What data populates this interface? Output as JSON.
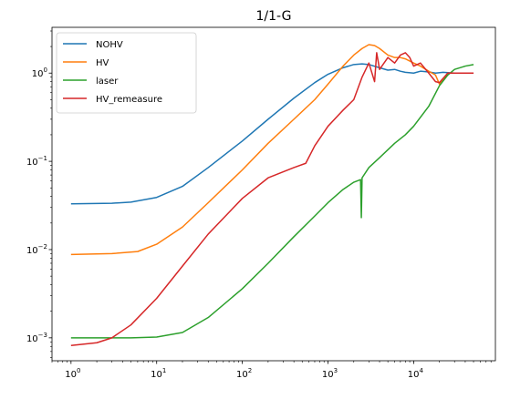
{
  "chart_data": {
    "type": "line",
    "title": "1/1-G",
    "xlabel": "",
    "ylabel": "",
    "xscale": "log",
    "yscale": "log",
    "xlim": [
      0.6,
      90000
    ],
    "ylim": [
      0.00055,
      3.3
    ],
    "x_ticks": [
      {
        "value": 1,
        "base": "10",
        "exp": "0"
      },
      {
        "value": 10,
        "base": "10",
        "exp": "1"
      },
      {
        "value": 100,
        "base": "10",
        "exp": "2"
      },
      {
        "value": 1000,
        "base": "10",
        "exp": "3"
      },
      {
        "value": 10000,
        "base": "10",
        "exp": "4"
      }
    ],
    "y_ticks": [
      {
        "value": 0.001,
        "base": "10",
        "exp": "−3"
      },
      {
        "value": 0.01,
        "base": "10",
        "exp": "−2"
      },
      {
        "value": 0.1,
        "base": "10",
        "exp": "−1"
      },
      {
        "value": 1,
        "base": "10",
        "exp": "0"
      }
    ],
    "legend_position": "top-left",
    "grid": false,
    "series": [
      {
        "name": "NOHV",
        "color": "#1f77b4",
        "points": [
          [
            1,
            0.033
          ],
          [
            3,
            0.0335
          ],
          [
            5,
            0.0345
          ],
          [
            10,
            0.039
          ],
          [
            20,
            0.052
          ],
          [
            40,
            0.085
          ],
          [
            100,
            0.17
          ],
          [
            200,
            0.3
          ],
          [
            400,
            0.52
          ],
          [
            700,
            0.78
          ],
          [
            1000,
            0.97
          ],
          [
            1500,
            1.15
          ],
          [
            2000,
            1.25
          ],
          [
            2500,
            1.27
          ],
          [
            3000,
            1.25
          ],
          [
            4000,
            1.15
          ],
          [
            5000,
            1.08
          ],
          [
            6000,
            1.1
          ],
          [
            7000,
            1.05
          ],
          [
            8000,
            1.02
          ],
          [
            10000,
            1.0
          ],
          [
            12000,
            1.05
          ],
          [
            15000,
            1.03
          ],
          [
            18000,
            1.0
          ],
          [
            22000,
            1.02
          ],
          [
            30000,
            1.0
          ],
          [
            50000,
            1.0
          ]
        ]
      },
      {
        "name": "HV",
        "color": "#ff7f0e",
        "points": [
          [
            1,
            0.0088
          ],
          [
            3,
            0.009
          ],
          [
            6,
            0.0095
          ],
          [
            10,
            0.0115
          ],
          [
            20,
            0.018
          ],
          [
            40,
            0.034
          ],
          [
            100,
            0.08
          ],
          [
            200,
            0.16
          ],
          [
            400,
            0.3
          ],
          [
            700,
            0.5
          ],
          [
            1000,
            0.75
          ],
          [
            1500,
            1.2
          ],
          [
            2000,
            1.6
          ],
          [
            2500,
            1.9
          ],
          [
            3000,
            2.1
          ],
          [
            3500,
            2.05
          ],
          [
            4000,
            1.9
          ],
          [
            5000,
            1.6
          ],
          [
            6000,
            1.5
          ],
          [
            7000,
            1.5
          ],
          [
            8000,
            1.45
          ],
          [
            10000,
            1.3
          ],
          [
            12000,
            1.2
          ],
          [
            15000,
            1.05
          ],
          [
            18000,
            0.95
          ],
          [
            20000,
            0.75
          ],
          [
            25000,
            1.0
          ],
          [
            30000,
            1.0
          ],
          [
            50000,
            1.0
          ]
        ]
      },
      {
        "name": "laser",
        "color": "#2ca02c",
        "points": [
          [
            1,
            0.001
          ],
          [
            5,
            0.001
          ],
          [
            10,
            0.00102
          ],
          [
            20,
            0.00115
          ],
          [
            40,
            0.0017
          ],
          [
            100,
            0.0036
          ],
          [
            200,
            0.007
          ],
          [
            400,
            0.014
          ],
          [
            700,
            0.024
          ],
          [
            1000,
            0.034
          ],
          [
            1500,
            0.048
          ],
          [
            2000,
            0.058
          ],
          [
            2400,
            0.062
          ],
          [
            2450,
            0.023
          ],
          [
            2500,
            0.065
          ],
          [
            3000,
            0.085
          ],
          [
            4000,
            0.11
          ],
          [
            6000,
            0.16
          ],
          [
            8000,
            0.2
          ],
          [
            10000,
            0.25
          ],
          [
            15000,
            0.42
          ],
          [
            20000,
            0.72
          ],
          [
            25000,
            0.95
          ],
          [
            30000,
            1.1
          ],
          [
            40000,
            1.2
          ],
          [
            50000,
            1.25
          ]
        ]
      },
      {
        "name": "HV_remeasure",
        "color": "#d62728",
        "points": [
          [
            1,
            0.00082
          ],
          [
            2,
            0.00088
          ],
          [
            3,
            0.001
          ],
          [
            5,
            0.0014
          ],
          [
            10,
            0.0028
          ],
          [
            20,
            0.0065
          ],
          [
            40,
            0.015
          ],
          [
            100,
            0.038
          ],
          [
            200,
            0.065
          ],
          [
            400,
            0.085
          ],
          [
            550,
            0.095
          ],
          [
            700,
            0.15
          ],
          [
            1000,
            0.25
          ],
          [
            1500,
            0.38
          ],
          [
            2000,
            0.5
          ],
          [
            2500,
            0.9
          ],
          [
            3000,
            1.3
          ],
          [
            3500,
            0.8
          ],
          [
            3700,
            1.7
          ],
          [
            4000,
            1.1
          ],
          [
            5000,
            1.5
          ],
          [
            6000,
            1.3
          ],
          [
            7000,
            1.6
          ],
          [
            8000,
            1.7
          ],
          [
            9000,
            1.5
          ],
          [
            10000,
            1.2
          ],
          [
            12000,
            1.3
          ],
          [
            15000,
            1.0
          ],
          [
            18000,
            0.8
          ],
          [
            20000,
            0.78
          ],
          [
            25000,
            1.0
          ],
          [
            30000,
            1.0
          ],
          [
            50000,
            1.0
          ]
        ]
      }
    ]
  }
}
